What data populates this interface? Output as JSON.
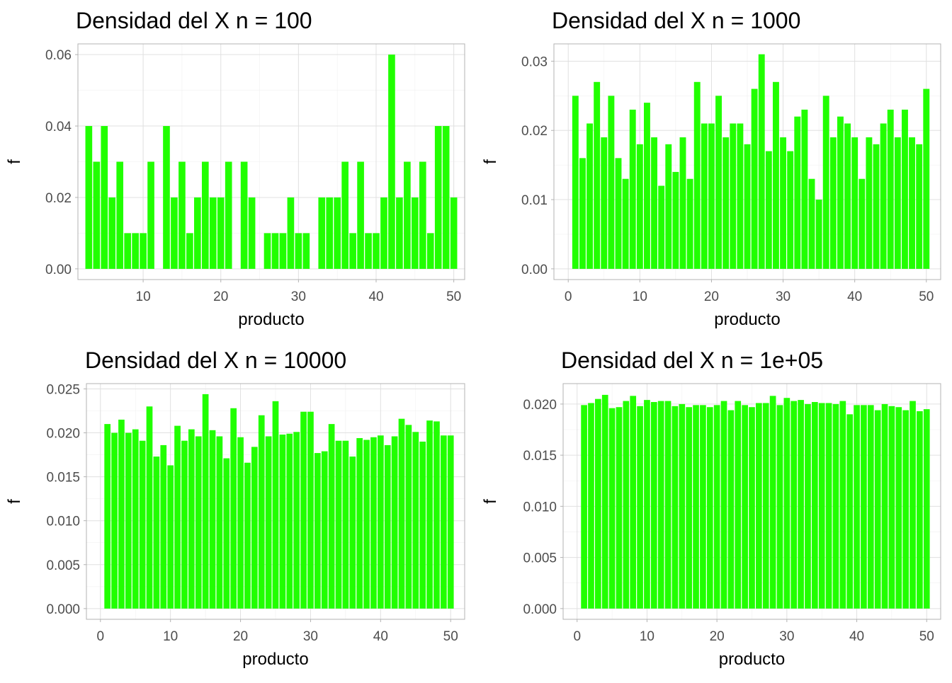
{
  "chart_data": [
    {
      "type": "bar",
      "title": "Densidad del X n = 100",
      "xlabel": "producto",
      "ylabel": "f",
      "xlim": [
        1.6,
        51.4
      ],
      "ylim": [
        -0.003,
        0.063
      ],
      "xticks": [
        10,
        20,
        30,
        40,
        50
      ],
      "yticks": [
        0.0,
        0.02,
        0.04,
        0.06
      ],
      "yticks_labels": [
        "0.00",
        "0.02",
        "0.04",
        "0.06"
      ],
      "grid": true,
      "bar_color": "#21ff00",
      "x": [
        3,
        4,
        5,
        6,
        7,
        8,
        9,
        10,
        11,
        13,
        14,
        15,
        16,
        17,
        18,
        19,
        20,
        21,
        23,
        24,
        26,
        27,
        28,
        29,
        30,
        31,
        33,
        34,
        35,
        36,
        37,
        38,
        39,
        40,
        41,
        42,
        43,
        44,
        45,
        46,
        47,
        48,
        49,
        50
      ],
      "values": [
        0.04,
        0.03,
        0.04,
        0.02,
        0.03,
        0.01,
        0.01,
        0.01,
        0.03,
        0.04,
        0.02,
        0.03,
        0.01,
        0.02,
        0.03,
        0.02,
        0.02,
        0.03,
        0.03,
        0.02,
        0.01,
        0.01,
        0.01,
        0.02,
        0.01,
        0.01,
        0.02,
        0.02,
        0.02,
        0.03,
        0.01,
        0.03,
        0.01,
        0.01,
        0.02,
        0.06,
        0.02,
        0.03,
        0.02,
        0.03,
        0.01,
        0.04,
        0.04,
        0.02
      ]
    },
    {
      "type": "bar",
      "title": "Densidad del X n = 1000",
      "xlabel": "producto",
      "ylabel": "f",
      "xlim": [
        -2,
        52
      ],
      "ylim": [
        -0.00155,
        0.0325
      ],
      "xticks": [
        0,
        10,
        20,
        30,
        40,
        50
      ],
      "yticks": [
        0.0,
        0.01,
        0.02,
        0.03
      ],
      "yticks_labels": [
        "0.00",
        "0.01",
        "0.02",
        "0.03"
      ],
      "grid": true,
      "bar_color": "#21ff00",
      "x": [
        1,
        2,
        3,
        4,
        5,
        6,
        7,
        8,
        9,
        10,
        11,
        12,
        13,
        14,
        15,
        16,
        17,
        18,
        19,
        20,
        21,
        22,
        23,
        24,
        25,
        26,
        27,
        28,
        29,
        30,
        31,
        32,
        33,
        34,
        35,
        36,
        37,
        38,
        39,
        40,
        41,
        42,
        43,
        44,
        45,
        46,
        47,
        48,
        49,
        50
      ],
      "values": [
        0.025,
        0.016,
        0.021,
        0.027,
        0.019,
        0.025,
        0.016,
        0.013,
        0.023,
        0.018,
        0.024,
        0.019,
        0.012,
        0.018,
        0.014,
        0.019,
        0.013,
        0.027,
        0.021,
        0.021,
        0.025,
        0.019,
        0.021,
        0.021,
        0.018,
        0.026,
        0.031,
        0.017,
        0.027,
        0.019,
        0.017,
        0.022,
        0.023,
        0.013,
        0.01,
        0.025,
        0.019,
        0.022,
        0.021,
        0.019,
        0.013,
        0.019,
        0.018,
        0.021,
        0.023,
        0.019,
        0.023,
        0.019,
        0.018,
        0.026
      ]
    },
    {
      "type": "bar",
      "title": "Densidad del X n = 10000",
      "xlabel": "producto",
      "ylabel": "f",
      "xlim": [
        -2,
        52
      ],
      "ylim": [
        -0.00122,
        0.0256
      ],
      "xticks": [
        0,
        10,
        20,
        30,
        40,
        50
      ],
      "yticks": [
        0.0,
        0.005,
        0.01,
        0.015,
        0.02,
        0.025
      ],
      "yticks_labels": [
        "0.000",
        "0.005",
        "0.010",
        "0.015",
        "0.020",
        "0.025"
      ],
      "grid": true,
      "bar_color": "#21ff00",
      "x": [
        1,
        2,
        3,
        4,
        5,
        6,
        7,
        8,
        9,
        10,
        11,
        12,
        13,
        14,
        15,
        16,
        17,
        18,
        19,
        20,
        21,
        22,
        23,
        24,
        25,
        26,
        27,
        28,
        29,
        30,
        31,
        32,
        33,
        34,
        35,
        36,
        37,
        38,
        39,
        40,
        41,
        42,
        43,
        44,
        45,
        46,
        47,
        48,
        49,
        50
      ],
      "values": [
        0.021,
        0.02,
        0.0215,
        0.02,
        0.0204,
        0.0191,
        0.023,
        0.0173,
        0.0186,
        0.0163,
        0.0208,
        0.0191,
        0.0204,
        0.0196,
        0.0244,
        0.0203,
        0.0196,
        0.0171,
        0.0228,
        0.0195,
        0.0166,
        0.0184,
        0.022,
        0.0196,
        0.0236,
        0.0198,
        0.0199,
        0.0201,
        0.0224,
        0.0224,
        0.0177,
        0.0179,
        0.021,
        0.0191,
        0.0191,
        0.0173,
        0.0194,
        0.0192,
        0.0195,
        0.0197,
        0.0186,
        0.0196,
        0.0216,
        0.0209,
        0.0201,
        0.019,
        0.0214,
        0.0213,
        0.0197,
        0.0197
      ]
    },
    {
      "type": "bar",
      "title": "Densidad del X n = 1e+05",
      "xlabel": "producto",
      "ylabel": "f",
      "xlim": [
        -2,
        52
      ],
      "ylim": [
        -0.00105,
        0.022
      ],
      "xticks": [
        0,
        10,
        20,
        30,
        40,
        50
      ],
      "yticks": [
        0.0,
        0.005,
        0.01,
        0.015,
        0.02
      ],
      "yticks_labels": [
        "0.000",
        "0.005",
        "0.010",
        "0.015",
        "0.020"
      ],
      "grid": true,
      "bar_color": "#21ff00",
      "x": [
        1,
        2,
        3,
        4,
        5,
        6,
        7,
        8,
        9,
        10,
        11,
        12,
        13,
        14,
        15,
        16,
        17,
        18,
        19,
        20,
        21,
        22,
        23,
        24,
        25,
        26,
        27,
        28,
        29,
        30,
        31,
        32,
        33,
        34,
        35,
        36,
        37,
        38,
        39,
        40,
        41,
        42,
        43,
        44,
        45,
        46,
        47,
        48,
        49,
        50
      ],
      "values": [
        0.0199,
        0.0201,
        0.0205,
        0.0209,
        0.0196,
        0.0197,
        0.0203,
        0.0208,
        0.0198,
        0.0204,
        0.0202,
        0.0203,
        0.0203,
        0.0198,
        0.02,
        0.0197,
        0.0199,
        0.0199,
        0.0197,
        0.0199,
        0.0203,
        0.0194,
        0.0203,
        0.0199,
        0.0197,
        0.0201,
        0.0201,
        0.0208,
        0.0199,
        0.0206,
        0.0203,
        0.0204,
        0.02,
        0.0202,
        0.0201,
        0.0201,
        0.02,
        0.0203,
        0.019,
        0.0199,
        0.0199,
        0.0199,
        0.0194,
        0.02,
        0.0198,
        0.0197,
        0.0194,
        0.0203,
        0.0193,
        0.0195
      ]
    }
  ]
}
